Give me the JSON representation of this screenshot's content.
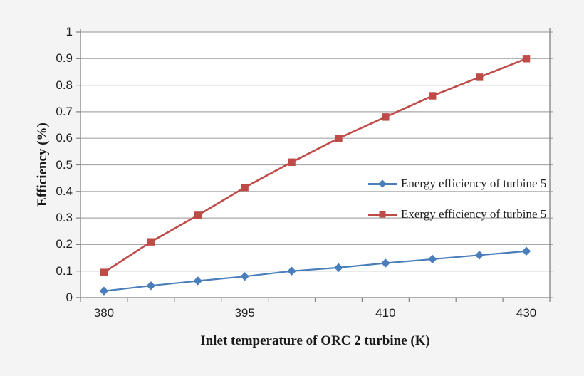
{
  "chart_data": {
    "type": "line",
    "title": "",
    "xlabel": "Inlet temperature of ORC 2 turbine (K)",
    "ylabel": "Efficiency (%)",
    "ylim": [
      0,
      1
    ],
    "y_tick_labels": [
      "1",
      "0.9",
      "0.8",
      "0.7",
      "0.6",
      "0.5",
      "0.4",
      "0.3",
      "0.2",
      "0.1",
      "0"
    ],
    "x_tick_labels": [
      "380",
      "",
      "",
      "395",
      "",
      "",
      "410",
      "",
      "",
      "430"
    ],
    "grid": "horizontal",
    "legend_position": "inside-right-middle",
    "series": [
      {
        "name": "Energy efficiency of turbine 5",
        "color": "#4A7EBB",
        "marker": "diamond",
        "values": [
          0.025,
          0.045,
          0.063,
          0.08,
          0.1,
          0.113,
          0.13,
          0.145,
          0.16,
          0.175
        ]
      },
      {
        "name": "Exergy efficiency of turbine 5",
        "color": "#BE4B48",
        "marker": "square",
        "values": [
          0.095,
          0.21,
          0.31,
          0.415,
          0.51,
          0.6,
          0.68,
          0.76,
          0.83,
          0.9
        ]
      }
    ],
    "colors": {
      "background": "#f4f4f4",
      "plot_background": "#ffffff",
      "gridline": "#a8a8a8",
      "axis": "#808080",
      "text": "#1f1f1f"
    }
  }
}
